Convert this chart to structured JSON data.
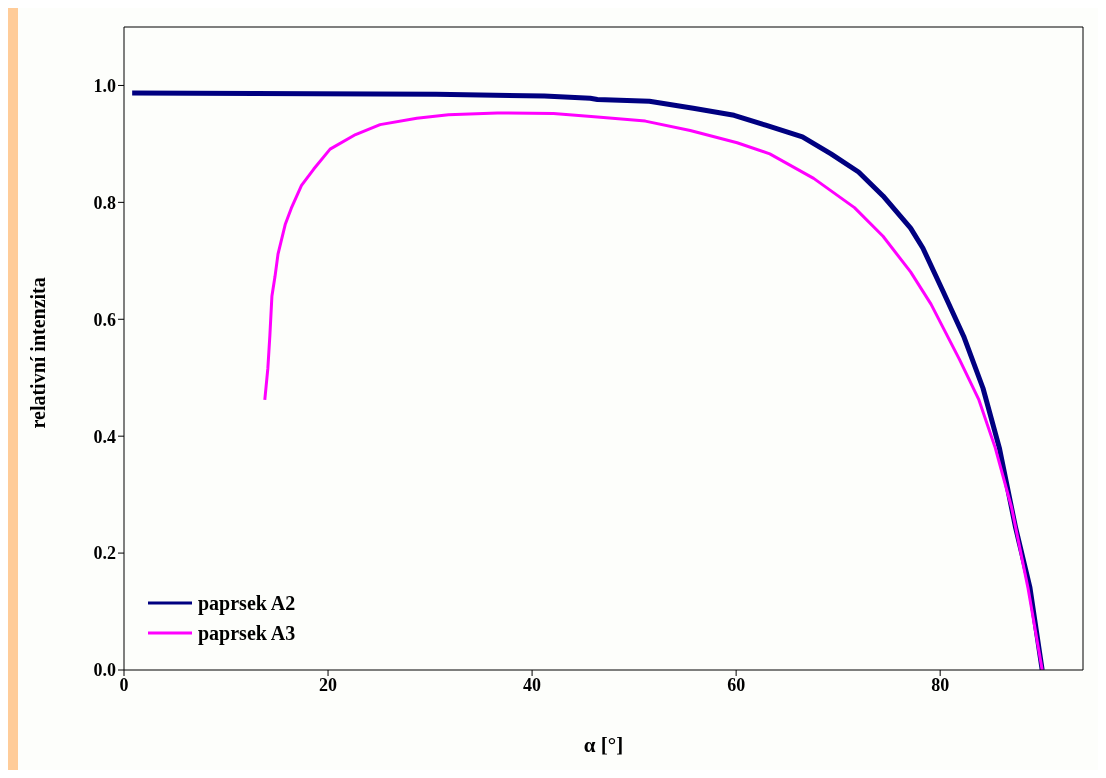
{
  "chart_data": {
    "type": "line",
    "xlabel": "α [°]",
    "ylabel": "relativní intenzita",
    "xlim": [
      0,
      94
    ],
    "xticks": [
      0,
      20,
      40,
      60,
      80
    ],
    "ylim": [
      0,
      1.1
    ],
    "yticks": [
      {
        "value": 0,
        "label": "0.0"
      },
      0.2,
      0.4,
      0.6,
      0.8,
      {
        "value": 1,
        "label": "1.0"
      }
    ],
    "grid": false,
    "legend": "bottom left",
    "marker": "none",
    "line_style": "solid",
    "series": [
      {
        "name": "paprsek A2",
        "color": "#000080",
        "x": [
          0.8,
          30.6,
          41.2,
          45.7,
          46.4,
          51.5,
          55.8,
          59.8,
          62.9,
          66.5,
          69.3,
          72.0,
          74.4,
          77.1,
          78.3,
          80.3,
          82.3,
          84.2,
          85.8,
          87.4,
          88.8,
          90
        ],
        "values": [
          0.987,
          0.985,
          0.982,
          0.978,
          0.976,
          0.973,
          0.961,
          0.949,
          0.932,
          0.912,
          0.883,
          0.852,
          0.811,
          0.756,
          0.722,
          0.647,
          0.571,
          0.482,
          0.38,
          0.243,
          0.141,
          0.0
        ]
      },
      {
        "name": "paprsek A3",
        "color": "#ff00ff",
        "x": [
          13.8,
          14.1,
          14.3,
          14.5,
          14.8,
          15.1,
          15.8,
          16.4,
          17.4,
          18.6,
          20.2,
          22.7,
          25.1,
          28.7,
          31.8,
          36.6,
          42.1,
          46.4,
          51.1,
          55.5,
          60.1,
          63.3,
          67.6,
          71.6,
          74.4,
          77.1,
          79.1,
          81.9,
          83.8,
          85.4,
          87.0,
          88.6,
          90
        ],
        "values": [
          0.462,
          0.516,
          0.573,
          0.64,
          0.673,
          0.712,
          0.762,
          0.79,
          0.829,
          0.857,
          0.891,
          0.916,
          0.933,
          0.944,
          0.95,
          0.953,
          0.952,
          0.946,
          0.939,
          0.923,
          0.902,
          0.883,
          0.841,
          0.791,
          0.742,
          0.681,
          0.626,
          0.531,
          0.462,
          0.38,
          0.278,
          0.141,
          0.0
        ]
      }
    ]
  }
}
